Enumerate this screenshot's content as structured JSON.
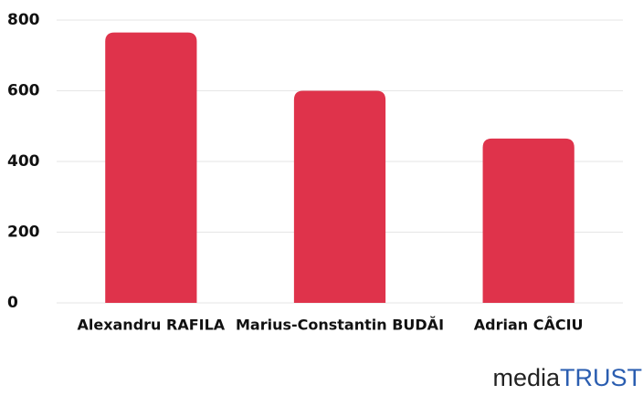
{
  "chart_data": {
    "type": "bar",
    "categories": [
      "Alexandru RAFILA",
      "Marius-Constantin BUDĂI",
      "Adrian CÂCIU"
    ],
    "values": [
      765,
      600,
      465
    ],
    "color": "#df334b",
    "ylim": [
      0,
      800
    ],
    "yticks": [
      0,
      200,
      400,
      600,
      800
    ],
    "grid": true
  },
  "logo": {
    "part1": "media",
    "part2": "TRUST"
  }
}
